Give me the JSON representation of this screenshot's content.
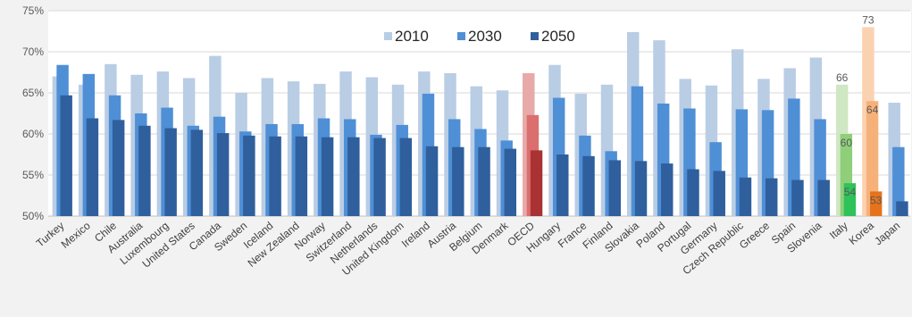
{
  "chart_data": {
    "type": "bar",
    "title": "",
    "xlabel": "",
    "ylabel": "",
    "ylim": [
      50,
      75
    ],
    "y_ticks": [
      "50%",
      "55%",
      "60%",
      "65%",
      "70%",
      "75%"
    ],
    "grid": true,
    "legend_position": "top",
    "categories": [
      "Turkey",
      "Mexico",
      "Chile",
      "Australia",
      "Luxembourg",
      "United States",
      "Canada",
      "Sweden",
      "Iceland",
      "New Zealand",
      "Norway",
      "Switzerland",
      "Netherlands",
      "United Kingdom",
      "Ireland",
      "Austria",
      "Belgium",
      "Denmark",
      "OECD",
      "Hungary",
      "France",
      "Finland",
      "Slovakia",
      "Poland",
      "Portugal",
      "Germany",
      "Czech Republic",
      "Greece",
      "Spain",
      "Slovenia",
      "Italy",
      "Korea",
      "Japan"
    ],
    "series": [
      {
        "name": "2010",
        "color": "#b9cde5",
        "values": [
          67.0,
          66.0,
          68.5,
          67.2,
          67.6,
          66.8,
          69.5,
          65.0,
          66.8,
          66.4,
          66.1,
          67.6,
          66.9,
          66.0,
          67.6,
          67.4,
          65.8,
          65.3,
          67.4,
          68.4,
          64.9,
          66.0,
          72.4,
          71.4,
          66.7,
          65.9,
          70.3,
          66.7,
          68.0,
          69.3,
          66.0,
          73.0,
          63.8
        ]
      },
      {
        "name": "2030",
        "color": "#4f8fd6",
        "values": [
          68.4,
          67.3,
          64.7,
          62.5,
          63.2,
          61.0,
          62.1,
          60.3,
          61.2,
          61.2,
          61.9,
          61.8,
          59.9,
          61.1,
          64.9,
          61.8,
          60.6,
          59.2,
          62.3,
          64.4,
          59.8,
          57.9,
          65.8,
          63.7,
          63.1,
          59.0,
          63.0,
          62.9,
          64.3,
          61.8,
          60.0,
          64.0,
          58.4
        ]
      },
      {
        "name": "2050",
        "color": "#2f5f9d",
        "values": [
          64.7,
          61.9,
          61.7,
          61.0,
          60.7,
          60.5,
          60.1,
          59.8,
          59.7,
          59.7,
          59.6,
          59.6,
          59.5,
          59.5,
          58.5,
          58.4,
          58.4,
          58.2,
          58.0,
          57.5,
          57.3,
          56.8,
          56.7,
          56.4,
          55.7,
          55.5,
          54.7,
          54.6,
          54.4,
          54.4,
          54.0,
          53.0,
          51.8
        ]
      }
    ],
    "highlights": {
      "OECD": {
        "colors": [
          "#e8a9a9",
          "#db6f6f",
          "#a93232"
        ]
      },
      "Italy": {
        "colors": [
          "#cfe7c2",
          "#8fcf7a",
          "#2fc25b"
        ],
        "labels": [
          "66",
          "60",
          "54"
        ]
      },
      "Korea": {
        "colors": [
          "#fbd2b0",
          "#f6b17a",
          "#e6731c"
        ],
        "labels": [
          "73",
          "64",
          "53"
        ]
      }
    }
  }
}
